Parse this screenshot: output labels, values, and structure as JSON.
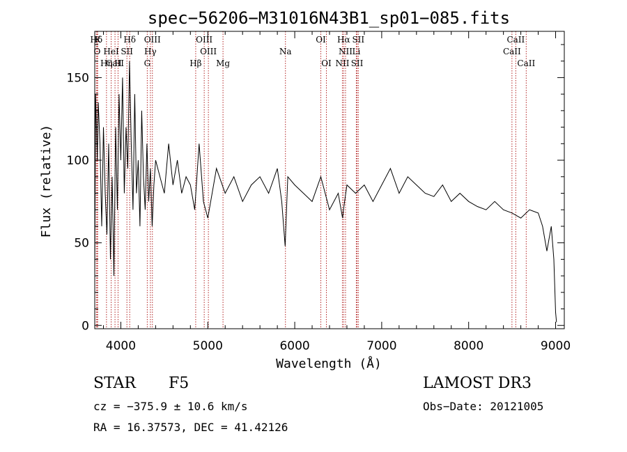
{
  "chart_data": {
    "type": "line",
    "title": "spec−56206−M31016N43B1_sp01−085.fits",
    "xlabel": "Wavelength (Å)",
    "ylabel": "Flux (relative)",
    "xlim": [
      3700,
      9100
    ],
    "ylim": [
      -2,
      178
    ],
    "xticks": [
      4000,
      5000,
      6000,
      7000,
      8000,
      9000
    ],
    "yticks": [
      0,
      50,
      100,
      150
    ],
    "line_color": "#000000",
    "marker_color": "#b22222",
    "series": [
      {
        "name": "flux",
        "x": [
          3700,
          3710,
          3720,
          3730,
          3740,
          3760,
          3780,
          3800,
          3820,
          3840,
          3860,
          3880,
          3900,
          3920,
          3940,
          3960,
          3980,
          4000,
          4020,
          4040,
          4060,
          4080,
          4100,
          4120,
          4140,
          4160,
          4180,
          4200,
          4220,
          4240,
          4260,
          4280,
          4300,
          4320,
          4340,
          4360,
          4380,
          4400,
          4450,
          4500,
          4550,
          4600,
          4650,
          4700,
          4750,
          4800,
          4850,
          4900,
          4950,
          5000,
          5100,
          5200,
          5300,
          5400,
          5500,
          5600,
          5700,
          5800,
          5850,
          5890,
          5920,
          6000,
          6100,
          6200,
          6300,
          6400,
          6500,
          6550,
          6560,
          6600,
          6700,
          6800,
          6900,
          7000,
          7100,
          7200,
          7300,
          7400,
          7500,
          7600,
          7700,
          7800,
          7900,
          8000,
          8100,
          8200,
          8300,
          8400,
          8500,
          8600,
          8700,
          8800,
          8850,
          8900,
          8950,
          8980,
          9000,
          9010
        ],
        "y": [
          30,
          140,
          120,
          100,
          135,
          110,
          60,
          120,
          80,
          55,
          110,
          40,
          90,
          30,
          120,
          70,
          140,
          100,
          150,
          80,
          120,
          95,
          160,
          110,
          70,
          140,
          80,
          100,
          60,
          130,
          90,
          70,
          110,
          75,
          95,
          60,
          85,
          100,
          90,
          80,
          110,
          85,
          100,
          80,
          90,
          85,
          70,
          110,
          75,
          65,
          95,
          80,
          90,
          75,
          85,
          90,
          80,
          95,
          75,
          48,
          90,
          85,
          80,
          75,
          90,
          70,
          80,
          65,
          70,
          85,
          80,
          85,
          75,
          85,
          95,
          80,
          90,
          85,
          80,
          78,
          85,
          75,
          80,
          75,
          72,
          70,
          75,
          70,
          68,
          65,
          70,
          68,
          60,
          45,
          60,
          40,
          8,
          2
        ]
      }
    ],
    "lines": [
      {
        "label": "Hδ",
        "row": 1,
        "x": 3718
      },
      {
        "label": "K",
        "row": 1,
        "x": 3734
      },
      {
        "label": "Hδ",
        "row": 1,
        "x": 4102
      },
      {
        "label": "OIII",
        "row": 1,
        "x": 4363
      },
      {
        "label": "OIII",
        "row": 1,
        "x": 4959
      },
      {
        "label": "OI",
        "row": 1,
        "x": 6300
      },
      {
        "label": "Hα",
        "row": 1,
        "x": 6563
      },
      {
        "label": "SII",
        "row": 1,
        "x": 6731
      },
      {
        "label": "CaII",
        "row": 1,
        "x": 8542
      },
      {
        "label": "O",
        "row": 2,
        "x": 3727
      },
      {
        "label": "HeI",
        "row": 2,
        "x": 3889
      },
      {
        "label": "SII",
        "row": 2,
        "x": 4070
      },
      {
        "label": "Hγ",
        "row": 2,
        "x": 4340
      },
      {
        "label": "OIII",
        "row": 2,
        "x": 5007
      },
      {
        "label": "Na",
        "row": 2,
        "x": 5893
      },
      {
        "label": "NII",
        "row": 2,
        "x": 6584
      },
      {
        "label": "Li",
        "row": 2,
        "x": 6708
      },
      {
        "label": "CaII",
        "row": 2,
        "x": 8498
      },
      {
        "label": "CaII",
        "row": 3,
        "x": 3933
      },
      {
        "label": "Hη",
        "row": 3,
        "x": 3835
      },
      {
        "label": "H",
        "row": 3,
        "x": 3968
      },
      {
        "label": "G",
        "row": 3,
        "x": 4304
      },
      {
        "label": "Hβ",
        "row": 3,
        "x": 4861
      },
      {
        "label": "Mg",
        "row": 3,
        "x": 5175
      },
      {
        "label": "OI",
        "row": 3,
        "x": 6364
      },
      {
        "label": "NII",
        "row": 3,
        "x": 6548
      },
      {
        "label": "SII",
        "row": 3,
        "x": 6717
      },
      {
        "label": "CaII",
        "row": 3,
        "x": 8662
      }
    ]
  },
  "info": {
    "class": "STAR",
    "subclass": "F5",
    "survey": "LAMOST DR3",
    "cz": "cz = −375.9 ± 10.6 km/s",
    "obs_date": "Obs−Date: 20121005",
    "radec": "RA =  16.37573, DEC =  41.42126"
  }
}
